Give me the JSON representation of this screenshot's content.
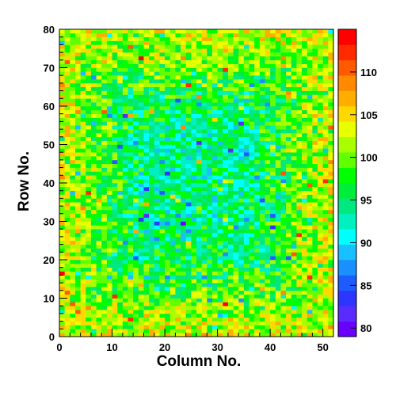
{
  "chart_data": {
    "type": "heatmap",
    "title": "",
    "xlabel": "Column No.",
    "ylabel": "Row No.",
    "xlim": [
      0,
      52
    ],
    "ylim": [
      0,
      80
    ],
    "x_ticks": [
      0,
      10,
      20,
      30,
      40,
      50
    ],
    "y_ticks": [
      0,
      10,
      20,
      30,
      40,
      50,
      60,
      70,
      80
    ],
    "n_columns": 52,
    "n_rows": 80,
    "colorbar": {
      "range": [
        79,
        115
      ],
      "ticks": [
        80,
        85,
        90,
        95,
        100,
        105,
        110
      ],
      "colormap": "rainbow (violet-blue-cyan-green-yellow-orange-red)"
    },
    "description_of_values": "Per-pixel values in the 80-115 range; edges (border rows/columns) mostly yellow-orange ~100-110, center mostly green-cyan ~92-100 with scattered blue outliers ~83-88."
  }
}
